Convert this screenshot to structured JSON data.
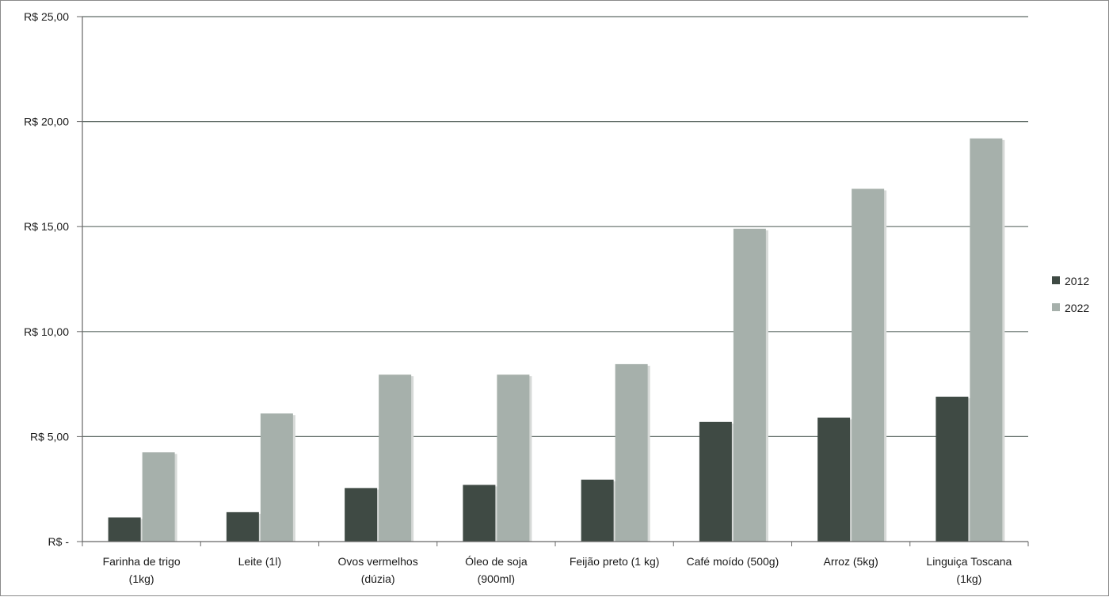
{
  "chart_data": {
    "type": "bar",
    "title": "",
    "xlabel": "",
    "ylabel": "",
    "ylim": [
      0,
      25
    ],
    "y_ticks": [
      {
        "value": 0,
        "label": "R$ -"
      },
      {
        "value": 5,
        "label": "R$ 5,00"
      },
      {
        "value": 10,
        "label": "R$ 10,00"
      },
      {
        "value": 15,
        "label": "R$ 15,00"
      },
      {
        "value": 20,
        "label": "R$ 20,00"
      },
      {
        "value": 25,
        "label": "R$ 25,00"
      }
    ],
    "grid": true,
    "legend_position": "right",
    "categories": [
      [
        "Farinha de trigo",
        "(1kg)"
      ],
      [
        "Leite (1l)"
      ],
      [
        "Ovos vermelhos",
        "(dúzia)"
      ],
      [
        "Óleo de soja",
        "(900ml)"
      ],
      [
        "Feijão preto (1 kg)"
      ],
      [
        "Café moído (500g)"
      ],
      [
        "Arroz (5kg)"
      ],
      [
        "Linguiça Toscana",
        "(1kg)"
      ]
    ],
    "series": [
      {
        "name": "2012",
        "color": "#3f4a44",
        "values": [
          1.15,
          1.4,
          2.55,
          2.7,
          2.95,
          5.7,
          5.9,
          6.9
        ]
      },
      {
        "name": "2022",
        "color": "#a6b0ab",
        "values": [
          4.25,
          6.1,
          7.95,
          7.95,
          8.45,
          14.9,
          16.8,
          19.2
        ]
      }
    ]
  }
}
